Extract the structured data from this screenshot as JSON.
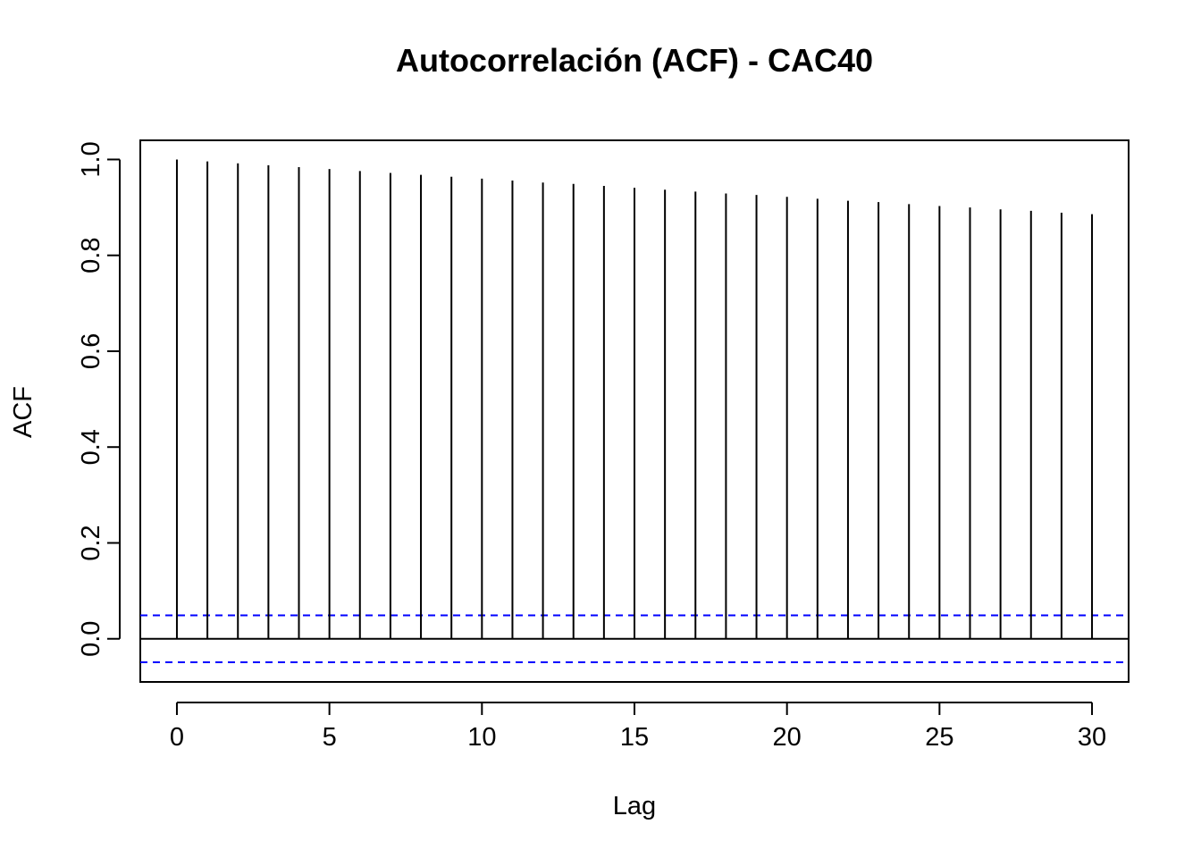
{
  "chart_data": {
    "type": "bar",
    "title": "Autocorrelación (ACF) - CAC40",
    "xlabel": "Lag",
    "ylabel": "ACF",
    "xlim": [
      -1.2,
      31.2
    ],
    "ylim": [
      -0.09,
      1.04
    ],
    "x_ticks": [
      "0",
      "5",
      "10",
      "15",
      "20",
      "25",
      "30"
    ],
    "y_ticks": [
      "0.0",
      "0.2",
      "0.4",
      "0.6",
      "0.8",
      "1.0"
    ],
    "x": [
      0,
      1,
      2,
      3,
      4,
      5,
      6,
      7,
      8,
      9,
      10,
      11,
      12,
      13,
      14,
      15,
      16,
      17,
      18,
      19,
      20,
      21,
      22,
      23,
      24,
      25,
      26,
      27,
      28,
      29,
      30
    ],
    "values": [
      1.0,
      0.996,
      0.992,
      0.988,
      0.984,
      0.98,
      0.976,
      0.972,
      0.968,
      0.964,
      0.96,
      0.956,
      0.952,
      0.949,
      0.945,
      0.941,
      0.937,
      0.933,
      0.929,
      0.926,
      0.922,
      0.918,
      0.914,
      0.911,
      0.907,
      0.903,
      0.9,
      0.896,
      0.893,
      0.889,
      0.886
    ],
    "confidence_bounds": [
      0.049,
      -0.049
    ],
    "zero_line": true,
    "grid": false,
    "legend": "none",
    "colors": {
      "bars": "#000000",
      "confidence": "#0000ff",
      "frame": "#000000"
    }
  }
}
